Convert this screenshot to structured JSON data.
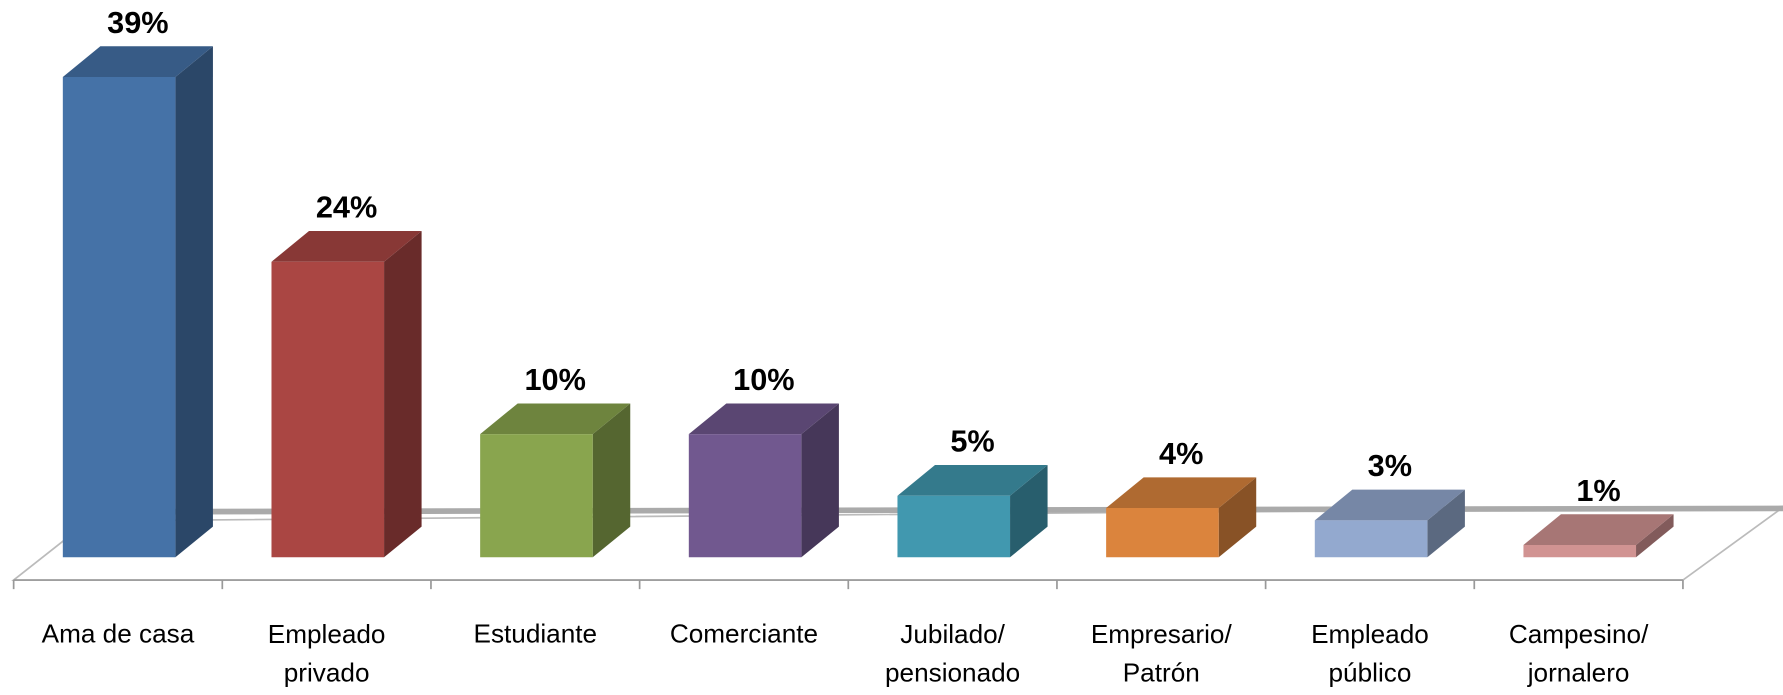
{
  "chart_data": {
    "type": "bar3d",
    "categories": [
      "Ama de casa",
      "Empleado\nprivado",
      "Estudiante",
      "Comerciante",
      "Jubilado/\npensionado",
      "Empresario/\nPatrón",
      "Empleado\npúblico",
      "Campesino/\njornalero"
    ],
    "values": [
      39,
      24,
      10,
      10,
      5,
      4,
      3,
      1
    ],
    "value_labels": [
      "39%",
      "24%",
      "10%",
      "10%",
      "5%",
      "4%",
      "3%",
      "1%"
    ],
    "colors": [
      "#4572a7",
      "#aa4643",
      "#89a54e",
      "#71588f",
      "#4198af",
      "#db843d",
      "#93a9cf",
      "#d19392"
    ]
  }
}
